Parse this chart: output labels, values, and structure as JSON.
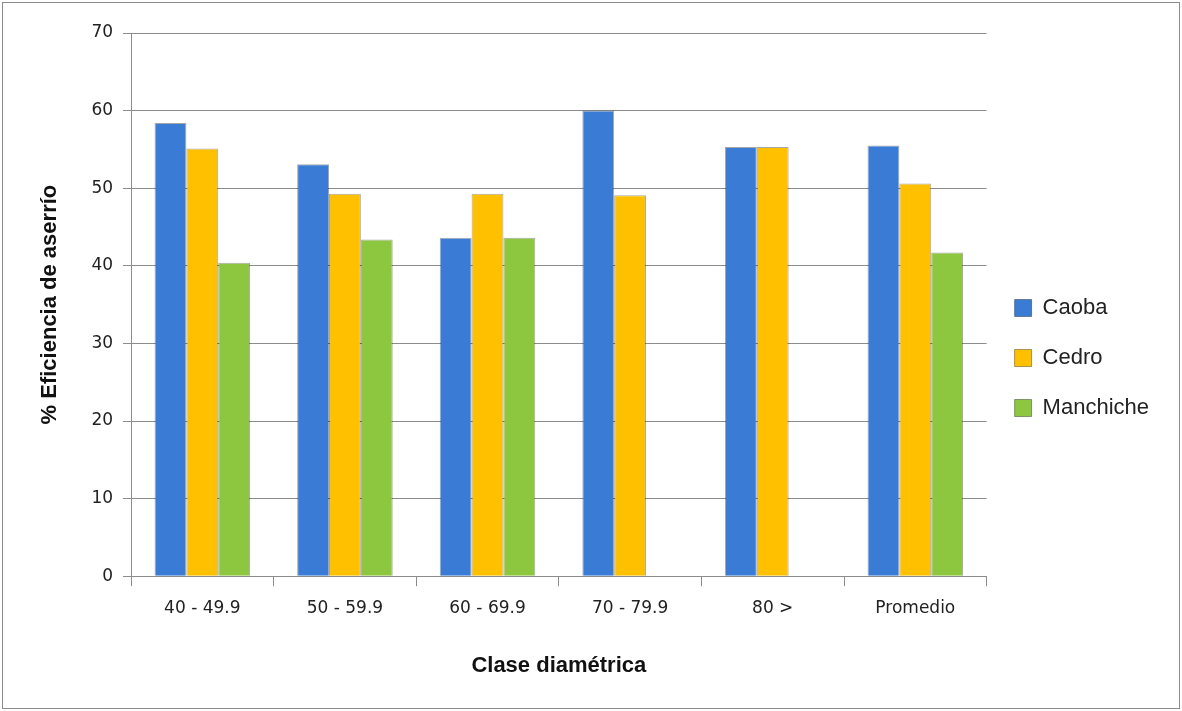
{
  "chart_data": {
    "type": "bar",
    "xlabel": "Clase diamétrica",
    "ylabel": "% Eficiencia de aserrío",
    "categories": [
      "40 - 49.9",
      "50 - 59.9",
      "60 - 69.9",
      "70 - 79.9",
      "80 >",
      "Promedio"
    ],
    "series": [
      {
        "name": "Caoba",
        "color": "#3a7bd5",
        "values": [
          58.4,
          53.1,
          43.6,
          60,
          55.3,
          55.5
        ]
      },
      {
        "name": "Cedro",
        "color": "#ffc000",
        "values": [
          55.1,
          49.3,
          49.3,
          49.1,
          55.3,
          50.6
        ]
      },
      {
        "name": "Manchiche",
        "color": "#8dc63f",
        "values": [
          40.4,
          43.4,
          43.6,
          null,
          null,
          41.7
        ]
      }
    ],
    "ylim": [
      0,
      70
    ],
    "yticks": [
      0,
      10,
      20,
      30,
      40,
      50,
      60,
      70
    ],
    "grid": "y",
    "legend": "right"
  }
}
